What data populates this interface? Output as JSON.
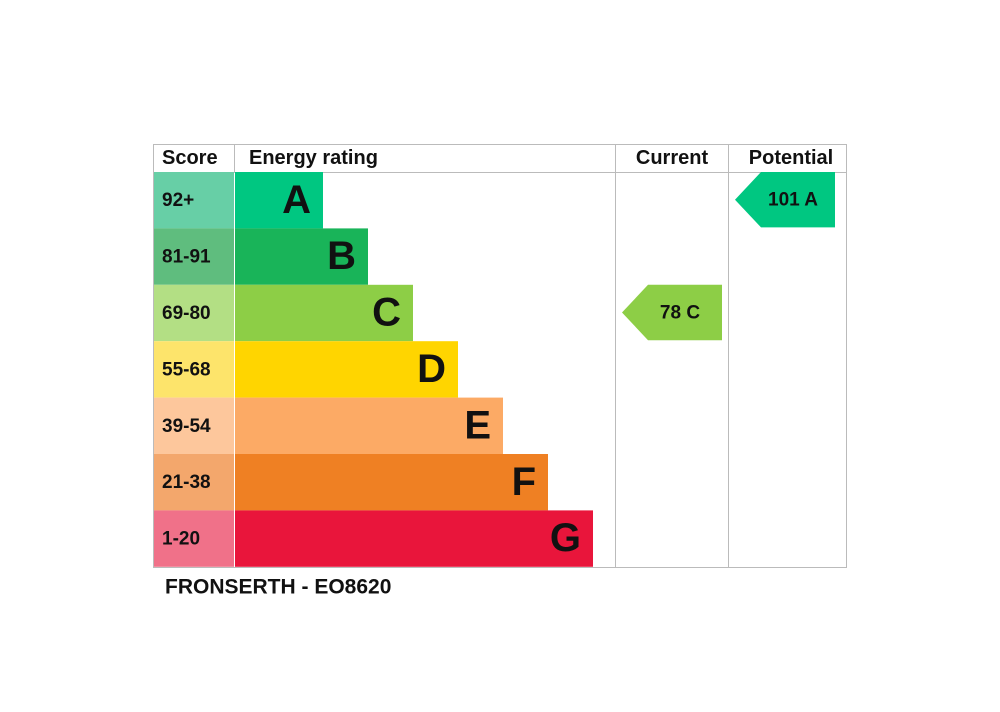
{
  "header": {
    "score": "Score",
    "rating": "Energy rating",
    "current": "Current",
    "potential": "Potential"
  },
  "rows": [
    {
      "score": "92+",
      "letter": "A",
      "color": "#00c781",
      "score_color": "#67cfa6"
    },
    {
      "score": "81-91",
      "letter": "B",
      "color": "#19b459",
      "score_color": "#5fbd7e"
    },
    {
      "score": "69-80",
      "letter": "C",
      "color": "#8dce46",
      "score_color": "#b3df84"
    },
    {
      "score": "55-68",
      "letter": "D",
      "color": "#ffd500",
      "score_color": "#fde46b"
    },
    {
      "score": "39-54",
      "letter": "E",
      "color": "#fcaa65",
      "score_color": "#fdc79c"
    },
    {
      "score": "21-38",
      "letter": "F",
      "color": "#ef8023",
      "score_color": "#f3a76c"
    },
    {
      "score": "1-20",
      "letter": "G",
      "color": "#e9153b",
      "score_color": "#f07189"
    }
  ],
  "current": {
    "label": "78 C",
    "color": "#8dce46"
  },
  "potential": {
    "label": "101 A",
    "color": "#00c781"
  },
  "footer": "FRONSERTH - EO8620"
}
